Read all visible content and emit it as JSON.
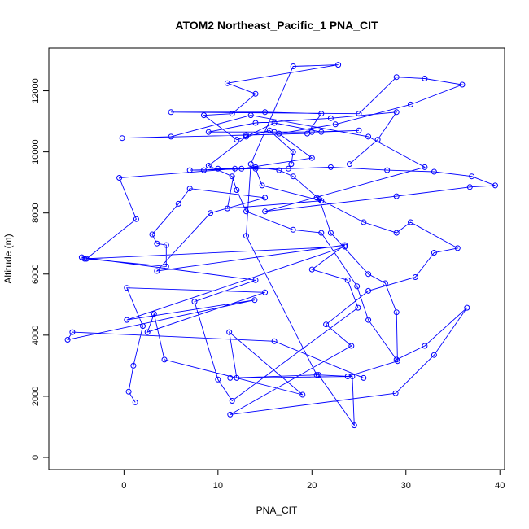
{
  "chart_data": {
    "type": "line",
    "title": "ATOM2 Northeast_Pacific_1 PNA_CIT",
    "xlabel": "PNA_CIT",
    "ylabel": "Altitude (m)",
    "xlim": [
      -8,
      40.5
    ],
    "ylim": [
      -400,
      13400
    ],
    "x_ticks": [
      0,
      10,
      20,
      30,
      40
    ],
    "y_ticks": [
      0,
      2000,
      4000,
      6000,
      8000,
      10000,
      12000
    ],
    "grid": false,
    "markers": "open-circle",
    "series": [
      {
        "color": "#0000ff",
        "points": [
          [
            1.2,
            1800
          ],
          [
            0.5,
            2150
          ],
          [
            1.0,
            3000
          ],
          [
            2.0,
            4300
          ],
          [
            0.3,
            5550
          ],
          [
            15.0,
            5400
          ],
          [
            2.5,
            4100
          ],
          [
            3.2,
            4700
          ],
          [
            4.3,
            3200
          ],
          [
            19.0,
            2050
          ],
          [
            11.2,
            4100
          ],
          [
            12.0,
            2600
          ],
          [
            24.3,
            2650
          ],
          [
            24.5,
            1050
          ],
          [
            20.7,
            2700
          ],
          [
            11.3,
            2600
          ],
          [
            25.5,
            2600
          ],
          [
            16.0,
            3800
          ],
          [
            -5.5,
            4100
          ],
          [
            -6.0,
            3850
          ],
          [
            13.9,
            5150
          ],
          [
            0.3,
            4500
          ],
          [
            23.5,
            6900
          ],
          [
            -4.2,
            6500
          ],
          [
            -4.5,
            6550
          ],
          [
            14.0,
            5800
          ],
          [
            7.5,
            5100
          ],
          [
            10.0,
            2550
          ],
          [
            11.5,
            1850
          ],
          [
            24.9,
            4900
          ],
          [
            23.8,
            5800
          ],
          [
            20.0,
            6150
          ],
          [
            23.5,
            6950
          ],
          [
            3.5,
            6100
          ],
          [
            9.2,
            8000
          ],
          [
            15.0,
            8500
          ],
          [
            7.0,
            8800
          ],
          [
            5.8,
            8300
          ],
          [
            3.0,
            7300
          ],
          [
            3.5,
            7000
          ],
          [
            4.5,
            6950
          ],
          [
            4.5,
            6250
          ],
          [
            -4.0,
            6500
          ],
          [
            1.3,
            7800
          ],
          [
            -0.5,
            9150
          ],
          [
            11.8,
            9450
          ],
          [
            11.0,
            8150
          ],
          [
            21.0,
            8400
          ],
          [
            14.7,
            8900
          ],
          [
            14.0,
            9450
          ],
          [
            7.0,
            9400
          ],
          [
            8.5,
            9400
          ],
          [
            10.0,
            9450
          ],
          [
            17.5,
            9450
          ],
          [
            22.0,
            9500
          ],
          [
            28.0,
            9400
          ],
          [
            33.0,
            9350
          ],
          [
            37.0,
            9200
          ],
          [
            39.5,
            8900
          ],
          [
            36.8,
            8850
          ],
          [
            29.0,
            8550
          ],
          [
            15.0,
            8050
          ],
          [
            32.0,
            9500
          ],
          [
            26.0,
            10500
          ],
          [
            13.5,
            11200
          ],
          [
            5.0,
            10500
          ],
          [
            -0.2,
            10450
          ],
          [
            13.0,
            10550
          ],
          [
            19.5,
            10600
          ],
          [
            21.0,
            11250
          ],
          [
            15.0,
            11300
          ],
          [
            5.0,
            11300
          ],
          [
            25.0,
            11250
          ],
          [
            29.0,
            12450
          ],
          [
            32.0,
            12400
          ],
          [
            36.0,
            12200
          ],
          [
            30.5,
            11550
          ],
          [
            22.5,
            10900
          ],
          [
            16.5,
            10600
          ],
          [
            20.0,
            9800
          ],
          [
            12.5,
            9450
          ],
          [
            14.0,
            9500
          ],
          [
            16.5,
            9400
          ],
          [
            18.0,
            9200
          ],
          [
            20.8,
            8450
          ],
          [
            22.0,
            7350
          ],
          [
            26.0,
            6000
          ],
          [
            27.8,
            5700
          ],
          [
            29.0,
            4750
          ],
          [
            29.1,
            3150
          ],
          [
            23.8,
            2650
          ],
          [
            20.5,
            2700
          ],
          [
            13.0,
            7250
          ],
          [
            13.5,
            9600
          ],
          [
            18.0,
            12800
          ],
          [
            22.8,
            12850
          ],
          [
            11.0,
            12250
          ],
          [
            14.0,
            11900
          ],
          [
            11.5,
            11250
          ],
          [
            8.5,
            11200
          ],
          [
            12.0,
            10400
          ],
          [
            15.5,
            10700
          ],
          [
            18.0,
            10000
          ],
          [
            17.8,
            9600
          ],
          [
            24.0,
            9600
          ],
          [
            27.0,
            10400
          ],
          [
            29.0,
            11300
          ],
          [
            22.0,
            11100
          ],
          [
            14.0,
            10950
          ],
          [
            9.0,
            10650
          ],
          [
            16.0,
            10650
          ],
          [
            20.0,
            10650
          ],
          [
            25.0,
            10700
          ],
          [
            21.0,
            10650
          ],
          [
            16.0,
            10950
          ],
          [
            13.0,
            10500
          ],
          [
            9.0,
            9550
          ],
          [
            11.5,
            9200
          ],
          [
            12.0,
            8750
          ],
          [
            13.0,
            8050
          ],
          [
            18.0,
            7450
          ],
          [
            21.0,
            7350
          ],
          [
            24.8,
            5600
          ],
          [
            26.0,
            4500
          ],
          [
            29.0,
            3200
          ],
          [
            32.0,
            3650
          ],
          [
            36.5,
            4900
          ],
          [
            33.0,
            3350
          ],
          [
            28.9,
            2100
          ],
          [
            11.3,
            1400
          ],
          [
            24.2,
            3650
          ],
          [
            21.5,
            4350
          ],
          [
            26.0,
            5450
          ],
          [
            31.0,
            5900
          ],
          [
            33.0,
            6700
          ],
          [
            35.5,
            6850
          ],
          [
            30.5,
            7700
          ],
          [
            29.0,
            7350
          ],
          [
            25.5,
            7700
          ],
          [
            20.5,
            8500
          ]
        ]
      }
    ]
  }
}
